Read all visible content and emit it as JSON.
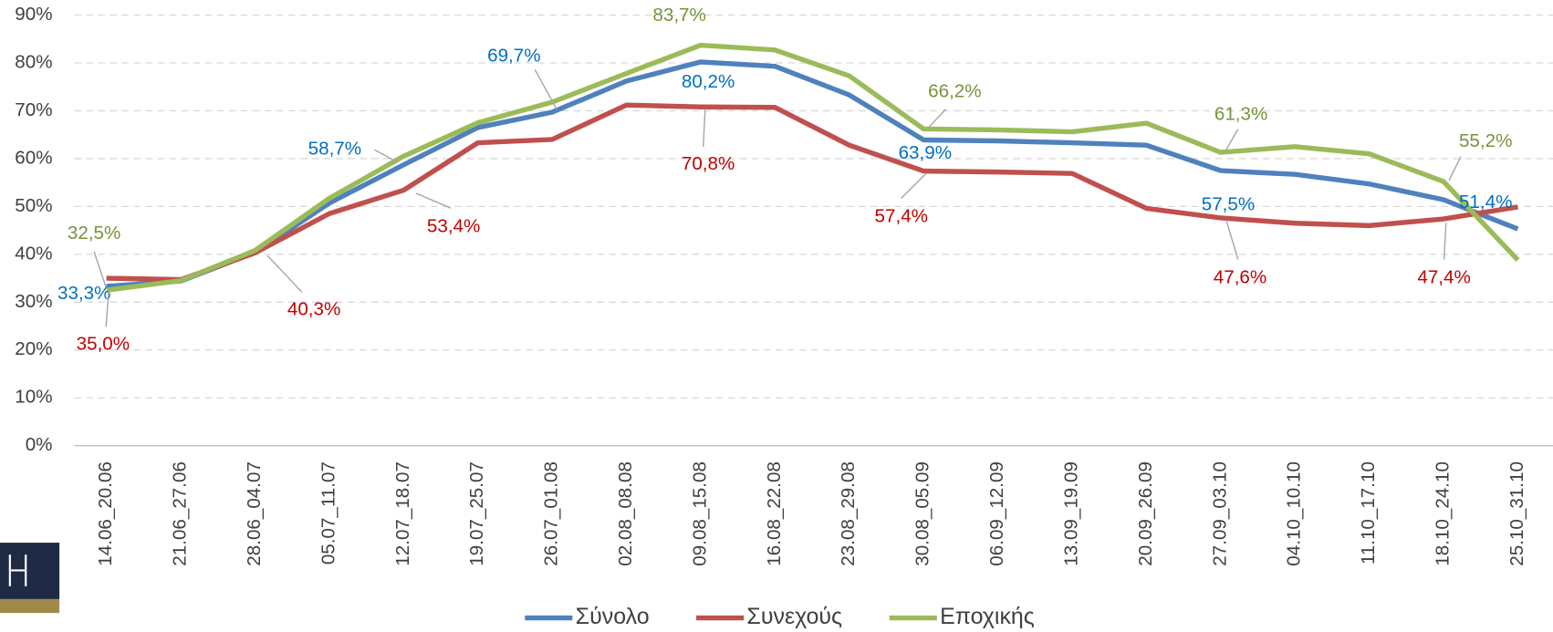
{
  "chart_data": {
    "type": "line",
    "categories": [
      "14.06_20.06",
      "21.06_27.06",
      "28.06_04.07",
      "05.07_11.07",
      "12.07_18.07",
      "19.07_25.07",
      "26.07_01.08",
      "02.08_08.08",
      "09.08_15.08",
      "16.08_22.08",
      "23.08_29.08",
      "30.08_05.09",
      "06.09_12.09",
      "13.09_19.09",
      "20.09_26.09",
      "27.09_03.10",
      "04.10_10.10",
      "11.10_17.10",
      "18.10_24.10",
      "25.10_31.10"
    ],
    "series": [
      {
        "name": "Σύνολο",
        "color": "#4f81bd",
        "label_color": "#0070c0",
        "values": [
          33.3,
          34.4,
          40.4,
          50.7,
          58.7,
          66.5,
          69.7,
          76.2,
          80.2,
          79.3,
          73.3,
          63.9,
          63.7,
          63.3,
          62.8,
          57.5,
          56.7,
          54.7,
          51.4,
          45.3
        ],
        "value_labels": [
          "33,3%",
          null,
          null,
          null,
          "58,7%",
          null,
          "69,7%",
          null,
          "80,2%",
          null,
          null,
          "63,9%",
          null,
          null,
          null,
          "57,5%",
          null,
          null,
          "51,4%",
          null
        ]
      },
      {
        "name": "Συνεχούς",
        "color": "#c0504d",
        "label_color": "#c00000",
        "values": [
          35.0,
          34.7,
          40.3,
          48.5,
          53.4,
          63.3,
          64.0,
          71.2,
          70.8,
          70.7,
          62.8,
          57.4,
          57.2,
          56.9,
          49.6,
          47.6,
          46.5,
          46.0,
          47.4,
          49.9
        ],
        "value_labels": [
          "35,0%",
          null,
          "40,3%",
          null,
          "53,4%",
          null,
          null,
          null,
          "70,8%",
          null,
          null,
          "57,4%",
          null,
          null,
          null,
          "47,6%",
          null,
          null,
          "47,4%",
          null
        ]
      },
      {
        "name": "Εποχικής",
        "color": "#9bbb59",
        "label_color": "#77933c",
        "values": [
          32.5,
          34.5,
          40.8,
          51.7,
          60.5,
          67.5,
          71.8,
          77.8,
          83.7,
          82.7,
          77.3,
          66.2,
          66.0,
          65.6,
          67.4,
          61.3,
          62.5,
          61.0,
          55.2,
          38.8
        ],
        "value_labels": [
          "32,5%",
          null,
          null,
          null,
          null,
          null,
          null,
          null,
          "83,7%",
          null,
          null,
          "66,2%",
          null,
          null,
          null,
          "61,3%",
          null,
          null,
          "55,2%",
          null
        ]
      }
    ],
    "ylim": [
      0,
      90
    ],
    "yticks": [
      {
        "value": 0,
        "label": "0%"
      },
      {
        "value": 10,
        "label": "10%"
      },
      {
        "value": 20,
        "label": "20%"
      },
      {
        "value": 30,
        "label": "30%"
      },
      {
        "value": 40,
        "label": "40%"
      },
      {
        "value": 50,
        "label": "50%"
      },
      {
        "value": 60,
        "label": "60%"
      },
      {
        "value": 70,
        "label": "70%"
      },
      {
        "value": 80,
        "label": "80%"
      },
      {
        "value": 90,
        "label": "90%"
      }
    ],
    "grid": true,
    "legend": "bottom"
  }
}
